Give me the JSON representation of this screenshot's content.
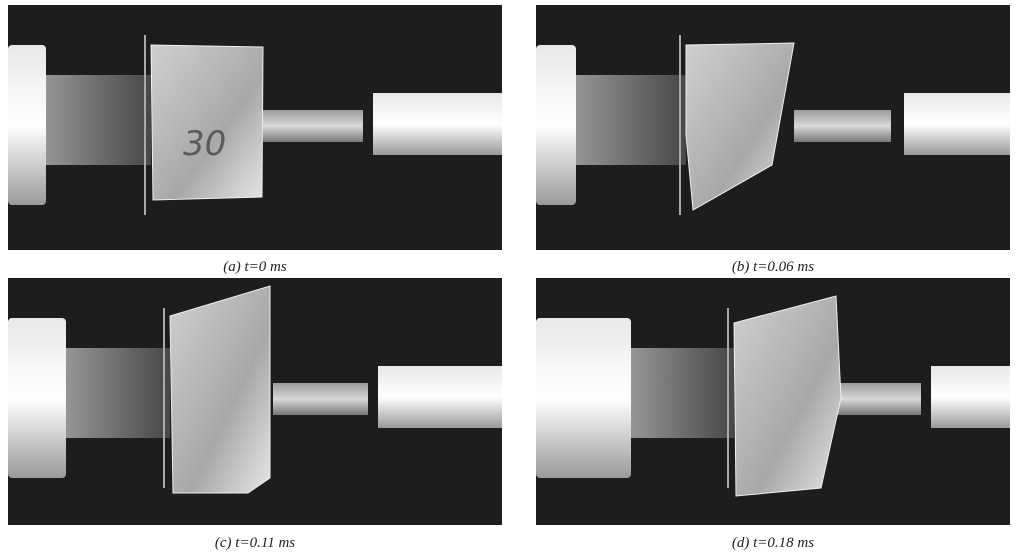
{
  "panels": [
    {
      "caption": "(a)  t=0 ms",
      "marking": "30"
    },
    {
      "caption": "(b)  t=0.06 ms"
    },
    {
      "caption": "(c)  t=0.11 ms"
    },
    {
      "caption": "(d)  t=0.18 ms"
    }
  ]
}
